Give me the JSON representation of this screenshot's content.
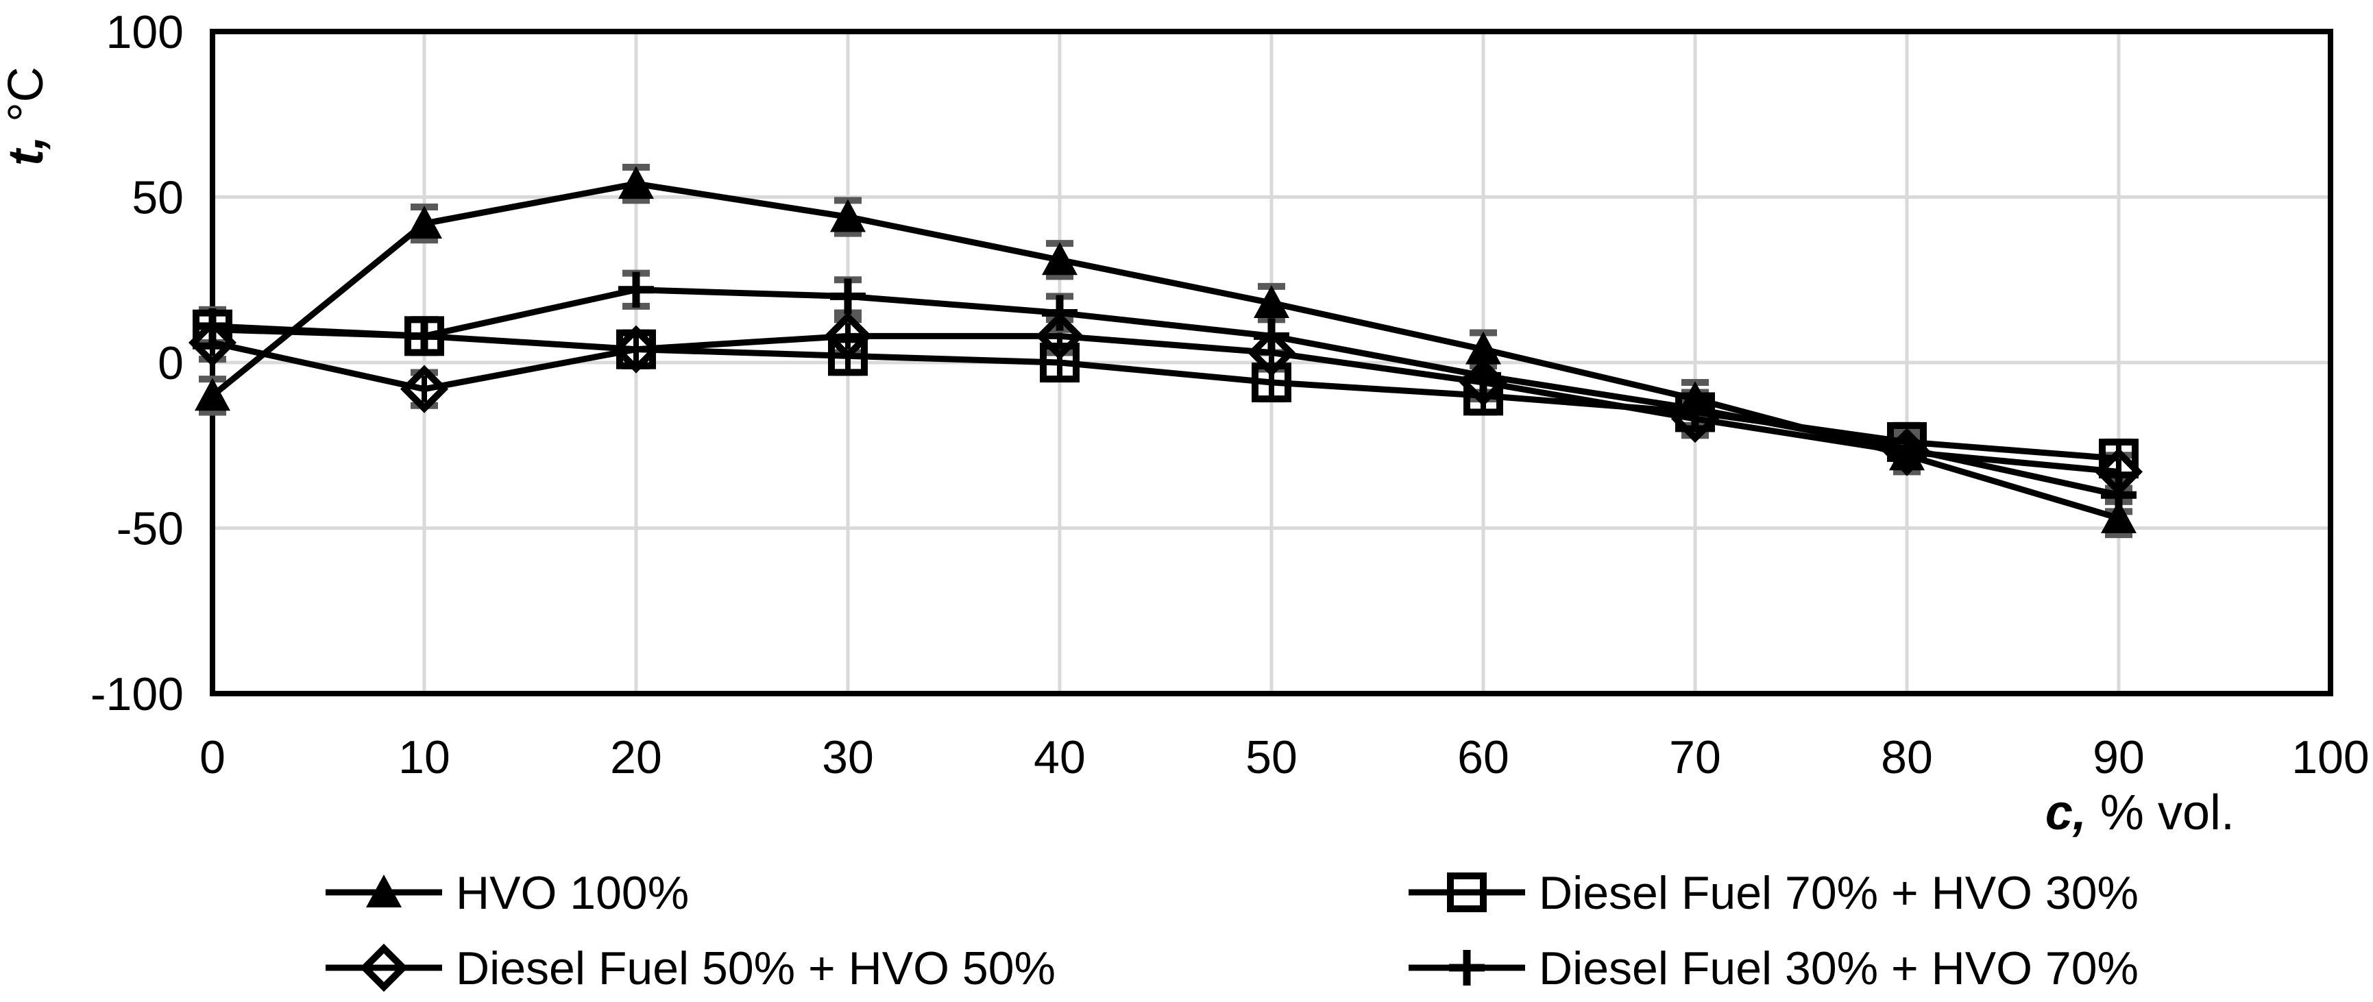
{
  "chart_data": {
    "type": "line",
    "title": "",
    "xlabel": "c, % vol.",
    "ylabel": "t, °C",
    "xlabel_parts": {
      "var": "c,",
      "rest": " % vol."
    },
    "ylabel_parts": {
      "var": "t,",
      "rest": " °C"
    },
    "x": [
      0,
      10,
      20,
      30,
      40,
      50,
      60,
      70,
      80,
      90
    ],
    "x_ticks": [
      0,
      10,
      20,
      30,
      40,
      50,
      60,
      70,
      80,
      90,
      100
    ],
    "y_ticks": [
      100,
      50,
      0,
      -50,
      -100
    ],
    "xlim": [
      0,
      100
    ],
    "ylim": [
      -100,
      100
    ],
    "grid": true,
    "legend_position": "bottom-two-columns",
    "error_bar": 5,
    "series": [
      {
        "name": "HVO 100%",
        "marker": "triangle-filled",
        "values": [
          -10,
          42,
          54,
          44,
          31,
          18,
          4,
          -11,
          -28,
          -47
        ]
      },
      {
        "name": "Diesel Fuel 70% + HVO 30%",
        "marker": "square-open",
        "values": [
          10,
          8,
          4,
          2,
          0,
          -6,
          -10,
          -15,
          -24,
          -29
        ]
      },
      {
        "name": "Diesel Fuel 50% + HVO 50%",
        "marker": "diamond-open",
        "values": [
          6,
          -8,
          4,
          8,
          8,
          3,
          -6,
          -17,
          -27,
          -33
        ]
      },
      {
        "name": "Diesel Fuel 30% + HVO 70%",
        "marker": "plus",
        "values": [
          11,
          8,
          22,
          20,
          15,
          8,
          -4,
          -14,
          -26,
          -40
        ]
      }
    ],
    "colors": {
      "series": "#000000",
      "grid": "#d9d9d9",
      "border": "#000000",
      "error_caps": "#595959",
      "background": "#ffffff"
    }
  }
}
